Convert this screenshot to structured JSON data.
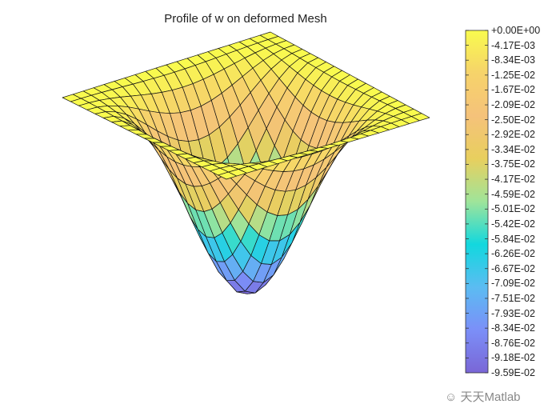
{
  "chart_data": {
    "type": "surface",
    "title": "Profile of w on deformed Mesh",
    "grid_cells_per_side": 20,
    "zlim": [
      -0.0959,
      0
    ],
    "colorbar": {
      "ticks": [
        "+0.00E+00",
        "-4.17E-03",
        "-8.34E-03",
        "-1.25E-02",
        "-1.67E-02",
        "-2.09E-02",
        "-2.50E-02",
        "-2.92E-02",
        "-3.34E-02",
        "-3.75E-02",
        "-4.17E-02",
        "-4.59E-02",
        "-5.01E-02",
        "-5.42E-02",
        "-5.84E-02",
        "-6.26E-02",
        "-6.67E-02",
        "-7.09E-02",
        "-7.51E-02",
        "-7.93E-02",
        "-8.34E-02",
        "-8.76E-02",
        "-9.18E-02",
        "-9.59E-02"
      ],
      "colors": [
        "#f9fb4e",
        "#f6d36a",
        "#f5c27a",
        "#e8cf5e",
        "#9fe49a",
        "#12d8de",
        "#5bbcf2",
        "#7b8ff8",
        "#7a66d6"
      ]
    }
  },
  "watermark": "天天Matlab"
}
